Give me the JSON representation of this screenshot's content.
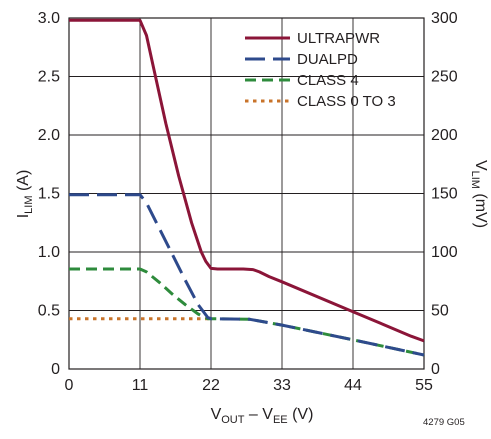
{
  "chart_data": {
    "type": "line",
    "x_ticks": [
      "0",
      "11",
      "22",
      "33",
      "44",
      "55"
    ],
    "y_left_ticks": [
      "0",
      "0.5",
      "1.0",
      "1.5",
      "2.0",
      "2.5",
      "3.0"
    ],
    "y_right_ticks": [
      "0",
      "50",
      "100",
      "150",
      "200",
      "250",
      "300"
    ],
    "xlim": [
      0,
      55
    ],
    "ylim": [
      0,
      3.0
    ],
    "y2lim": [
      0,
      300
    ],
    "xlabel": {
      "main1": "V",
      "sub1": "OUT",
      "middle": " – V",
      "sub2": "EE",
      "tail": " (V)"
    },
    "ylabel": {
      "main": "I",
      "sub": "LIM",
      "tail": " (A)"
    },
    "y2label": {
      "main": "V",
      "sub": "LIM",
      "tail": " (mV)"
    },
    "grid": true,
    "legend_position": "top-right",
    "figure_code": "4279 G05",
    "series": [
      {
        "name": "ULTRAPWR",
        "color": "#8b1538",
        "style": "solid",
        "points": [
          [
            0,
            2.98
          ],
          [
            11,
            2.98
          ],
          [
            12,
            2.85
          ],
          [
            13,
            2.6
          ],
          [
            15,
            2.1
          ],
          [
            17,
            1.65
          ],
          [
            19,
            1.25
          ],
          [
            20.5,
            1.0
          ],
          [
            21.2,
            0.92
          ],
          [
            22,
            0.86
          ],
          [
            23,
            0.855
          ],
          [
            25,
            0.855
          ],
          [
            27,
            0.855
          ],
          [
            28.5,
            0.85
          ],
          [
            29.5,
            0.83
          ],
          [
            31,
            0.79
          ],
          [
            33,
            0.745
          ],
          [
            44,
            0.49
          ],
          [
            53,
            0.28
          ],
          [
            55,
            0.24
          ]
        ]
      },
      {
        "name": "DUALPD",
        "color": "#2e4a8c",
        "style": "longdash",
        "points": [
          [
            0,
            1.49
          ],
          [
            11,
            1.49
          ],
          [
            12,
            1.42
          ],
          [
            14,
            1.2
          ],
          [
            16,
            0.98
          ],
          [
            18,
            0.76
          ],
          [
            20,
            0.55
          ],
          [
            21.5,
            0.44
          ],
          [
            22,
            0.43
          ],
          [
            28,
            0.425
          ],
          [
            33,
            0.375
          ],
          [
            44,
            0.25
          ],
          [
            55,
            0.12
          ]
        ]
      },
      {
        "name": "CLASS 4",
        "color": "#2e8b3c",
        "style": "dash",
        "points": [
          [
            0,
            0.855
          ],
          [
            11,
            0.855
          ],
          [
            12,
            0.83
          ],
          [
            14,
            0.74
          ],
          [
            16,
            0.64
          ],
          [
            18,
            0.55
          ],
          [
            20,
            0.47
          ],
          [
            21.5,
            0.43
          ],
          [
            22,
            0.43
          ],
          [
            28,
            0.425
          ],
          [
            33,
            0.375
          ],
          [
            44,
            0.25
          ],
          [
            55,
            0.12
          ]
        ]
      },
      {
        "name": "CLASS 0 TO 3",
        "color": "#c8732a",
        "style": "dot",
        "points": [
          [
            0,
            0.43
          ],
          [
            22,
            0.43
          ]
        ]
      }
    ]
  }
}
